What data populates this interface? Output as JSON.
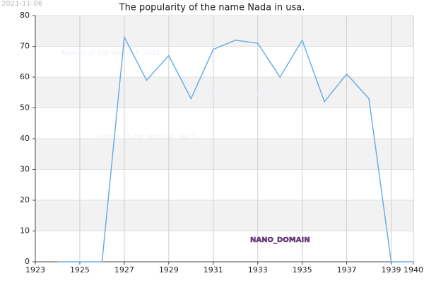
{
  "chart_data": {
    "type": "line",
    "title": "The popularity of the name Nada in usa.",
    "date_stamp": "2021-11-06",
    "watermarks": [
      "Names of the World © 2021",
      "Names of the World © 2021",
      "Names of the World © 2021"
    ],
    "domain_label": "NANO_DOMAIN",
    "x": [
      1924,
      1925,
      1926,
      1927,
      1928,
      1929,
      1930,
      1931,
      1932,
      1933,
      1934,
      1935,
      1936,
      1937,
      1938,
      1939,
      1940
    ],
    "series": [
      {
        "name": "Nada",
        "color": "#6aaee8",
        "values": [
          0,
          0,
          0,
          73,
          59,
          67,
          53,
          69,
          72,
          71,
          60,
          72,
          52,
          61,
          53,
          0,
          0
        ]
      }
    ],
    "xlim": [
      1923,
      1940
    ],
    "xticks": [
      1923,
      1925,
      1927,
      1929,
      1931,
      1933,
      1935,
      1937,
      1939,
      1940
    ],
    "ylim": [
      0,
      80
    ],
    "yticks": [
      0,
      10,
      20,
      30,
      40,
      50,
      60,
      70,
      80
    ],
    "grid": true
  }
}
